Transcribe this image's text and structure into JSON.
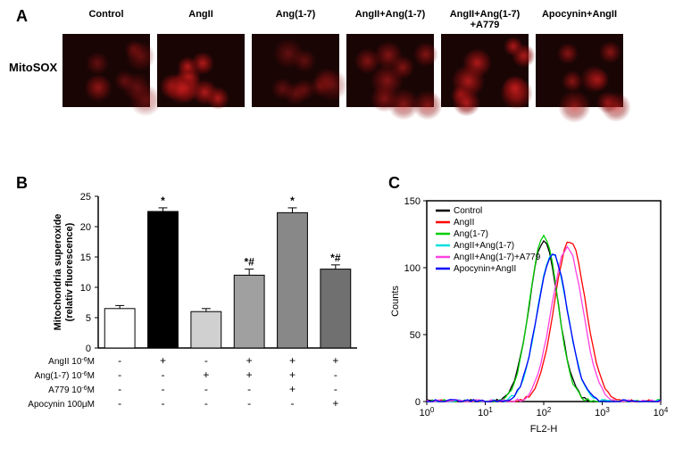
{
  "panelA": {
    "label": "A",
    "rowLabel": "MitoSOX",
    "columns": [
      "Control",
      "AngII",
      "Ang(1-7)",
      "AngII+Ang(1-7)",
      "AngII+Ang(1-7)\n+A779",
      "Apocynin+AngII"
    ],
    "intensities": [
      0.3,
      0.95,
      0.28,
      0.55,
      0.92,
      0.6
    ],
    "background_color": "#1a0505",
    "cell_color": "#c81e1e"
  },
  "panelB": {
    "label": "B",
    "type": "bar",
    "ylabel": "Mitochondria superoxide\n(relativ fluorescence)",
    "ylim": [
      0,
      25
    ],
    "ytick_step": 5,
    "bars": [
      {
        "value": 6.5,
        "err": 0.5,
        "fill": "#ffffff",
        "annot": ""
      },
      {
        "value": 22.5,
        "err": 0.6,
        "fill": "#000000",
        "annot": "*"
      },
      {
        "value": 6.0,
        "err": 0.5,
        "fill": "#d0d0d0",
        "annot": ""
      },
      {
        "value": 12.0,
        "err": 1.0,
        "fill": "#a0a0a0",
        "annot": "*#"
      },
      {
        "value": 22.3,
        "err": 0.8,
        "fill": "#888888",
        "annot": "*"
      },
      {
        "value": 13.0,
        "err": 0.7,
        "fill": "#707070",
        "annot": "*#"
      }
    ],
    "treatment_rows": [
      {
        "label": "AngII 10⁻⁶M",
        "marks": [
          "-",
          "+",
          "-",
          "+",
          "+",
          "+"
        ]
      },
      {
        "label": "Ang(1-7) 10⁻⁶M",
        "marks": [
          "-",
          "-",
          "+",
          "+",
          "+",
          "-"
        ]
      },
      {
        "label": "A779 10⁻⁶M",
        "marks": [
          "-",
          "-",
          "-",
          "-",
          "+",
          "-"
        ]
      },
      {
        "label": "Apocynin 100μM",
        "marks": [
          "-",
          "-",
          "-",
          "-",
          "-",
          "+"
        ]
      }
    ],
    "axis_color": "#000000",
    "font_size": 11,
    "bg": "#ffffff"
  },
  "panelC": {
    "label": "C",
    "type": "histogram-overlay",
    "xlabel": "FL2-H",
    "ylabel": "Counts",
    "xlim_log": [
      0,
      4
    ],
    "ylim": [
      0,
      150
    ],
    "ytick_step": 50,
    "legend": [
      {
        "label": "Control",
        "color": "#000000"
      },
      {
        "label": "AngII",
        "color": "#ff0000"
      },
      {
        "label": "Ang(1-7)",
        "color": "#00cc00"
      },
      {
        "label": "AngII+Ang(1-7)",
        "color": "#00e0e0"
      },
      {
        "label": "AngII+Ang(1-7)+A779",
        "color": "#ff40e0"
      },
      {
        "label": "Apocynin+AngII",
        "color": "#0000ff"
      }
    ],
    "curves": [
      {
        "peak_x": 2.0,
        "peak_y": 120,
        "width": 0.35,
        "color": "#000000"
      },
      {
        "peak_x": 2.45,
        "peak_y": 120,
        "width": 0.38,
        "color": "#ff0000"
      },
      {
        "peak_x": 2.0,
        "peak_y": 124,
        "width": 0.34,
        "color": "#00cc00"
      },
      {
        "peak_x": 2.15,
        "peak_y": 110,
        "width": 0.37,
        "color": "#00e0e0"
      },
      {
        "peak_x": 2.4,
        "peak_y": 115,
        "width": 0.38,
        "color": "#ff40e0"
      },
      {
        "peak_x": 2.15,
        "peak_y": 110,
        "width": 0.37,
        "color": "#0000ff"
      }
    ],
    "axis_color": "#000000",
    "bg": "#ffffff",
    "font_size": 11
  }
}
